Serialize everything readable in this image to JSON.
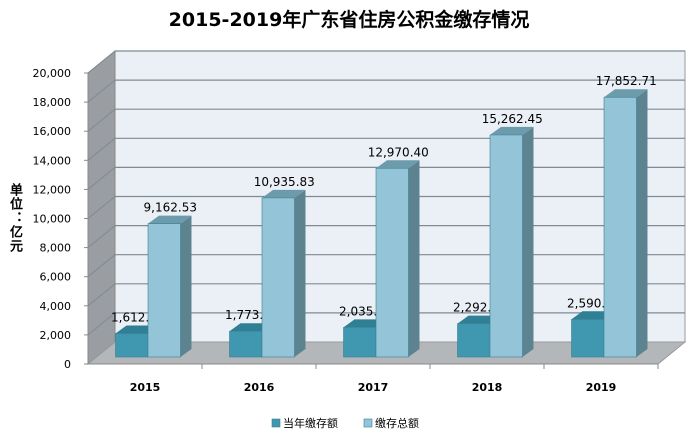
{
  "chart_data": {
    "type": "bar",
    "title": "2015-2019年广东省住房公积金缴存情况",
    "ylabel": "单位：亿元",
    "xlabel": "",
    "categories": [
      "2015",
      "2016",
      "2017",
      "2018",
      "2019"
    ],
    "series": [
      {
        "name": "当年缴存额",
        "values": [
          1612.97,
          1773.1,
          2035.2,
          2292.04,
          2590.26
        ],
        "labels": [
          "1,612.97",
          "1,773.10",
          "2,035.20",
          "2,292.04",
          "2,590.26"
        ],
        "color": "#3f97b0"
      },
      {
        "name": "缴存总额",
        "values": [
          9162.53,
          10935.83,
          12970.4,
          15262.45,
          17852.71
        ],
        "labels": [
          "9,162.53",
          "10,935.83",
          "12,970.40",
          "15,262.45",
          "17,852.71"
        ],
        "color": "#93c4d8"
      }
    ],
    "ylim": [
      0,
      20000
    ],
    "yticks": [
      0,
      2000,
      4000,
      6000,
      8000,
      10000,
      12000,
      14000,
      16000,
      18000,
      20000
    ],
    "ytick_labels": [
      "0",
      "2,000",
      "4,000",
      "6,000",
      "8,000",
      "10,000",
      "12,000",
      "14,000",
      "16,000",
      "18,000",
      "20,000"
    ],
    "grid": true,
    "style": "3d-clustered-column",
    "legend_position": "bottom"
  }
}
